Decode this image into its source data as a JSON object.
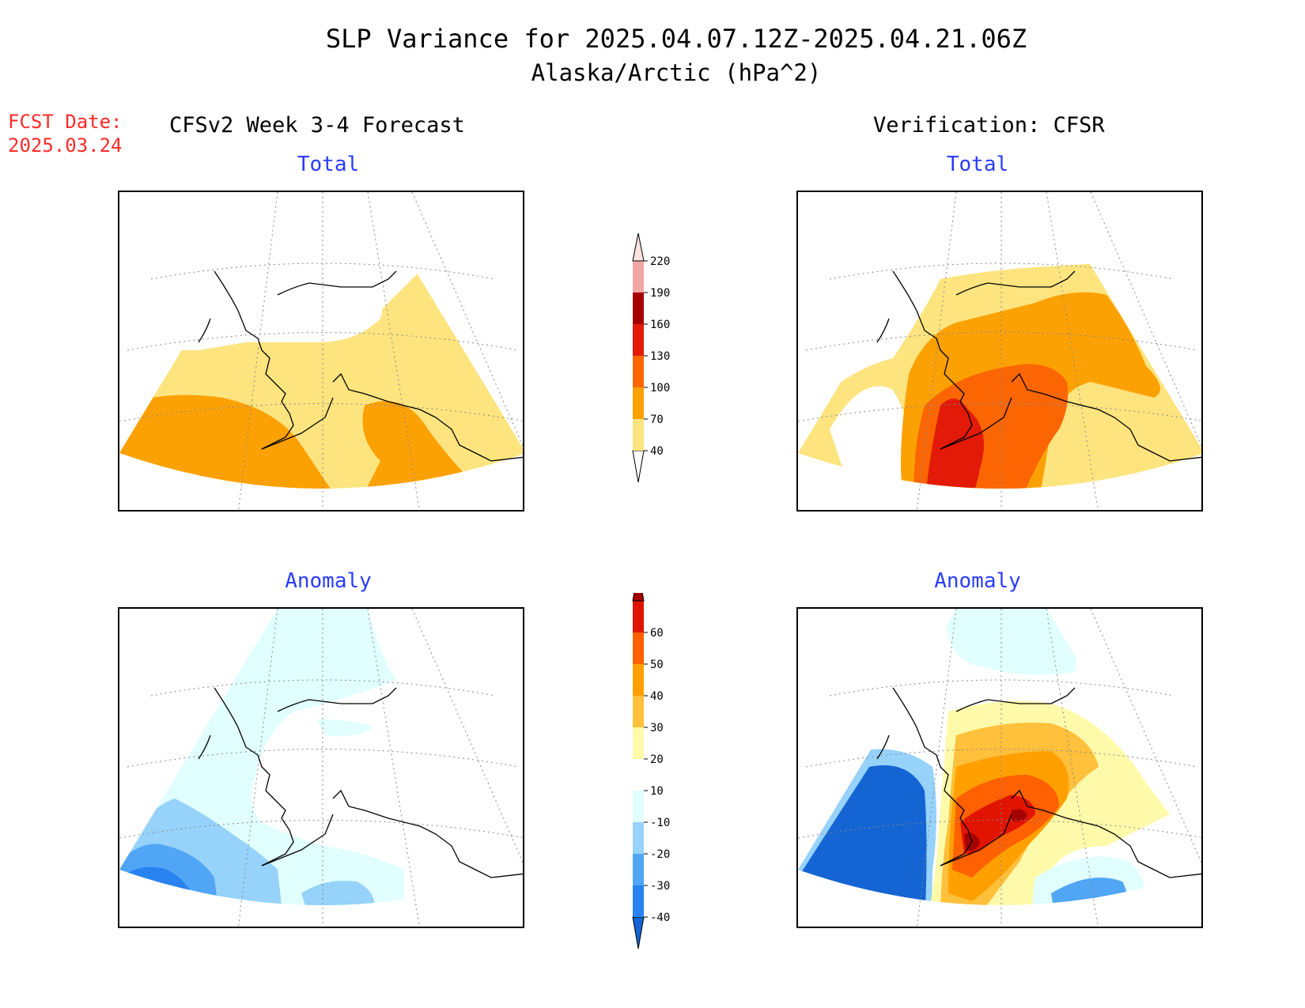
{
  "title": {
    "line1": "SLP Variance for 2025.04.07.12Z-2025.04.21.06Z",
    "line2": "Alaska/Arctic (hPa^2)"
  },
  "fcst_date": {
    "label": "FCST Date:",
    "value": "2025.03.24"
  },
  "columns": {
    "left": "CFSv2 Week 3-4 Forecast",
    "right": "Verification: CFSR"
  },
  "panels": {
    "top_left": {
      "subtitle": "Total"
    },
    "top_right": {
      "subtitle": "Total"
    },
    "bottom_left": {
      "subtitle": "Anomaly"
    },
    "bottom_right": {
      "subtitle": "Anomaly"
    }
  },
  "colorbars": {
    "total": {
      "levels": [
        "40",
        "70",
        "100",
        "130",
        "160",
        "190",
        "220"
      ],
      "colors": [
        "#fde47f",
        "#fca103",
        "#fb6602",
        "#e21a07",
        "#a50103",
        "#f3a4a4",
        "#fde2e2"
      ]
    },
    "anomaly": {
      "levels": [
        "-40",
        "-30",
        "-20",
        "-10",
        "10",
        "20",
        "30",
        "40",
        "50",
        "60"
      ],
      "colors": [
        "#1464d3",
        "#2882f0",
        "#50a5f5",
        "#96d2fa",
        "#e1ffff",
        "#ffffff",
        "#fffaaa",
        "#ffc03c",
        "#ffa000",
        "#ff6000",
        "#e11400",
        "#a50000"
      ]
    }
  },
  "map_colors": {
    "yellow": "#fde47f",
    "orange": "#fca103",
    "dark_orange": "#fb6602",
    "red": "#e21a07",
    "dark_red": "#a50103",
    "light_cyan": "#e1ffff",
    "light_blue": "#96d2fa",
    "mid_blue": "#50a5f5",
    "blue": "#2882f0",
    "dark_blue": "#1464d3",
    "pale_yellow": "#fffaaa",
    "light_orange": "#ffc03c"
  }
}
